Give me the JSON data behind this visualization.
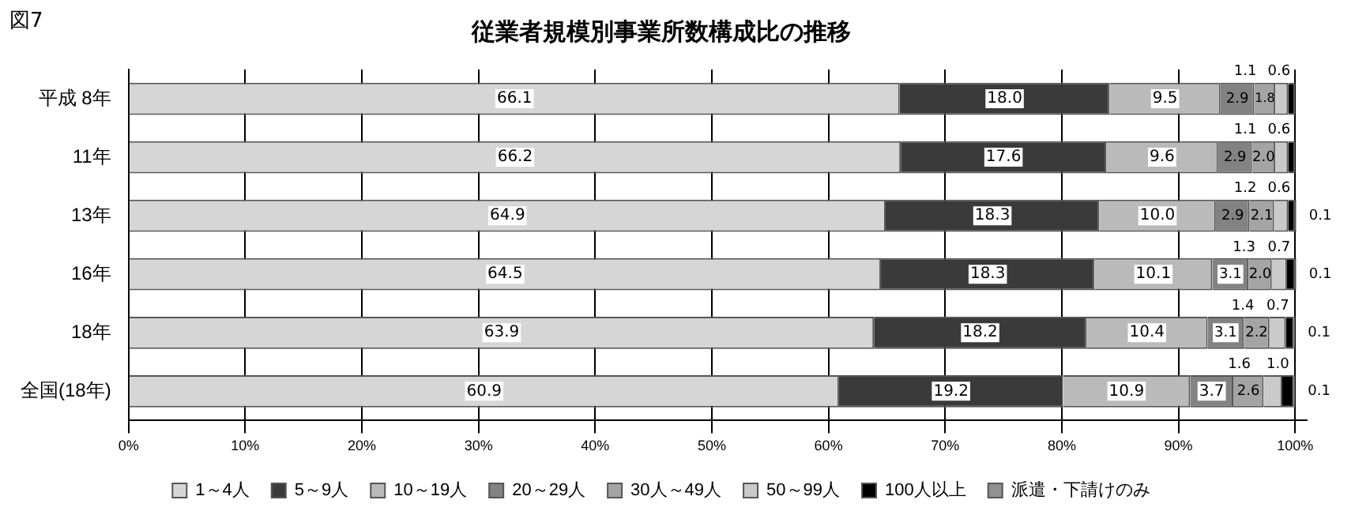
{
  "chart_data": {
    "type": "bar",
    "orientation": "horizontal",
    "stacked": true,
    "title": "従業者規模別事業所数構成比の推移",
    "annotations": [
      "図7"
    ],
    "categories": [
      "平成 8年",
      "11年",
      "13年",
      "16年",
      "18年",
      "全国(18年)"
    ],
    "series": [
      {
        "name": "1～4人",
        "color": "#d6d6d6",
        "values": [
          66.1,
          66.2,
          64.9,
          64.5,
          63.9,
          60.9
        ],
        "value_labels": [
          "66.1",
          "66.2",
          "64.9",
          "64.5",
          "63.9",
          "60.9"
        ]
      },
      {
        "name": "5～9人",
        "color": "#3a3a3a",
        "values": [
          18.0,
          17.6,
          18.3,
          18.3,
          18.2,
          19.2
        ],
        "value_labels": [
          "18.0",
          "17.6",
          "18.3",
          "18.3",
          "18.2",
          "19.2"
        ]
      },
      {
        "name": "10～19人",
        "color": "#bababa",
        "values": [
          9.5,
          9.6,
          10.0,
          10.1,
          10.4,
          10.9
        ],
        "value_labels": [
          "9.5",
          "9.6",
          "10.0",
          "10.1",
          "10.4",
          "10.9"
        ]
      },
      {
        "name": "20～29人",
        "color": "#828282",
        "values": [
          2.9,
          2.9,
          2.9,
          3.1,
          3.1,
          3.7
        ],
        "value_labels": [
          "2.9",
          "2.9",
          "2.9",
          "3.1",
          "3.1",
          "3.7"
        ]
      },
      {
        "name": "30人～49人",
        "color": "#a4a4a4",
        "values": [
          1.8,
          2.0,
          2.1,
          2.0,
          2.2,
          2.6
        ],
        "value_labels": [
          "1.8",
          "2.0",
          "2.1",
          "2.0",
          "2.2",
          "2.6"
        ]
      },
      {
        "name": "50～99人",
        "color": "#cacaca",
        "values": [
          1.1,
          1.1,
          1.2,
          1.3,
          1.4,
          1.6
        ],
        "value_labels": [
          "1.1",
          "1.1",
          "1.2",
          "1.3",
          "1.4",
          "1.6"
        ]
      },
      {
        "name": "100人以上",
        "color": "#000000",
        "values": [
          0.6,
          0.6,
          0.6,
          0.7,
          0.7,
          1.0
        ],
        "value_labels": [
          "0.6",
          "0.6",
          "0.6",
          "0.7",
          "0.7",
          "1.0"
        ]
      },
      {
        "name": "派遣・下請けのみ",
        "color": "#909090",
        "values": [
          null,
          null,
          0.1,
          0.1,
          0.1,
          0.1
        ],
        "value_labels": [
          null,
          null,
          "0.1",
          "0.1",
          "0.1",
          "0.1"
        ]
      }
    ],
    "xlim": [
      0,
      101
    ],
    "xticks": [
      {
        "value": 0,
        "label": "0%"
      },
      {
        "value": 10,
        "label": "10%"
      },
      {
        "value": 20,
        "label": "20%"
      },
      {
        "value": 30,
        "label": "30%"
      },
      {
        "value": 40,
        "label": "40%"
      },
      {
        "value": 50,
        "label": "50%"
      },
      {
        "value": 60,
        "label": "60%"
      },
      {
        "value": 70,
        "label": "70%"
      },
      {
        "value": 80,
        "label": "80%"
      },
      {
        "value": 90,
        "label": "90%"
      },
      {
        "value": 100,
        "label": "100%"
      }
    ],
    "grid": "x",
    "legend": "bottom"
  }
}
